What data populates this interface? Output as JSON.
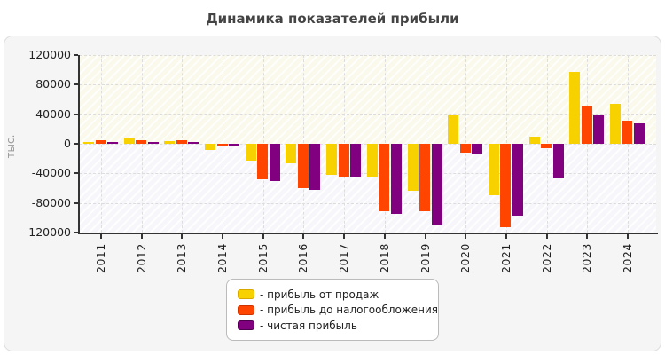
{
  "chart_data": {
    "type": "bar",
    "title": "Динамика показателей прибыли",
    "ylabel": "тыс.",
    "xlabel": "",
    "categories": [
      "2011",
      "2012",
      "2013",
      "2014",
      "2015",
      "2016",
      "2017",
      "2018",
      "2019",
      "2020",
      "2021",
      "2022",
      "2023",
      "2024"
    ],
    "series": [
      {
        "name": "прибыль от продаж",
        "color": "#f8d200",
        "border": "#d9a800",
        "values": [
          2500,
          8000,
          3500,
          -8500,
          -22500,
          -26500,
          -42500,
          -44500,
          -63500,
          39000,
          -70000,
          9500,
          97000,
          54000
        ]
      },
      {
        "name": "прибыль до налогообложения",
        "color": "#ff4500",
        "border": "#cc3300",
        "values": [
          4500,
          4500,
          5000,
          -2000,
          -48500,
          -60500,
          -44000,
          -91500,
          -91500,
          -12500,
          -113000,
          -6000,
          50500,
          31000
        ]
      },
      {
        "name": "чистая прибыль",
        "color": "#800080",
        "border": "#4d004d",
        "values": [
          2000,
          2000,
          2000,
          -2500,
          -50000,
          -62000,
          -45500,
          -94500,
          -109000,
          -13000,
          -97000,
          -47000,
          38000,
          28000
        ]
      }
    ],
    "ylim": [
      -120000,
      120000
    ],
    "y_ticks": [
      120000,
      80000,
      40000,
      0,
      -40000,
      -80000,
      -120000
    ],
    "legend_prefix": "- ",
    "grid": "dashed",
    "legend_position": "bottom-center",
    "colors": {
      "title": "#444444",
      "axis": "#333333",
      "tick_label": "#222222",
      "ylabel_text": "#999999"
    }
  }
}
